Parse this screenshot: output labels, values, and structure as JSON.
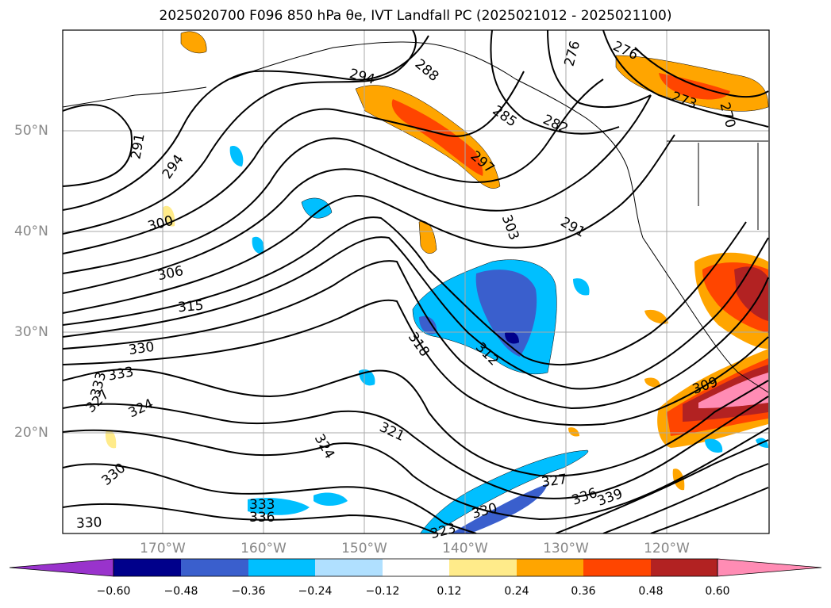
{
  "title": "2025020700 F096 850 hPa θe, IVT Landfall PC (2025021012 - 2025021100)",
  "lat_labels": [
    "50°N",
    "40°N",
    "30°N",
    "20°N"
  ],
  "lon_labels": [
    "170°W",
    "160°W",
    "150°W",
    "140°W",
    "130°W",
    "120°W"
  ],
  "colorbar": {
    "ticks": [
      "−0.60",
      "−0.48",
      "−0.36",
      "−0.24",
      "−0.12",
      "0.12",
      "0.24",
      "0.36",
      "0.48",
      "0.60"
    ],
    "colors": [
      "#9933cc",
      "#00008b",
      "#3a5fcd",
      "#00bfff",
      "#b0e0ff",
      "#ffffff",
      "#ffeb8a",
      "#ffa500",
      "#ff4500",
      "#b22222",
      "#ff8cb4"
    ]
  },
  "contour_labels": [
    "291",
    "294",
    "300",
    "306",
    "315",
    "330",
    "333",
    "333",
    "327",
    "324",
    "330",
    "330",
    "333",
    "336",
    "294",
    "288",
    "276",
    "276",
    "273",
    "270",
    "285",
    "282",
    "297",
    "303",
    "291",
    "318",
    "312",
    "321",
    "324",
    "327",
    "330",
    "323",
    "336",
    "339",
    "309"
  ]
}
